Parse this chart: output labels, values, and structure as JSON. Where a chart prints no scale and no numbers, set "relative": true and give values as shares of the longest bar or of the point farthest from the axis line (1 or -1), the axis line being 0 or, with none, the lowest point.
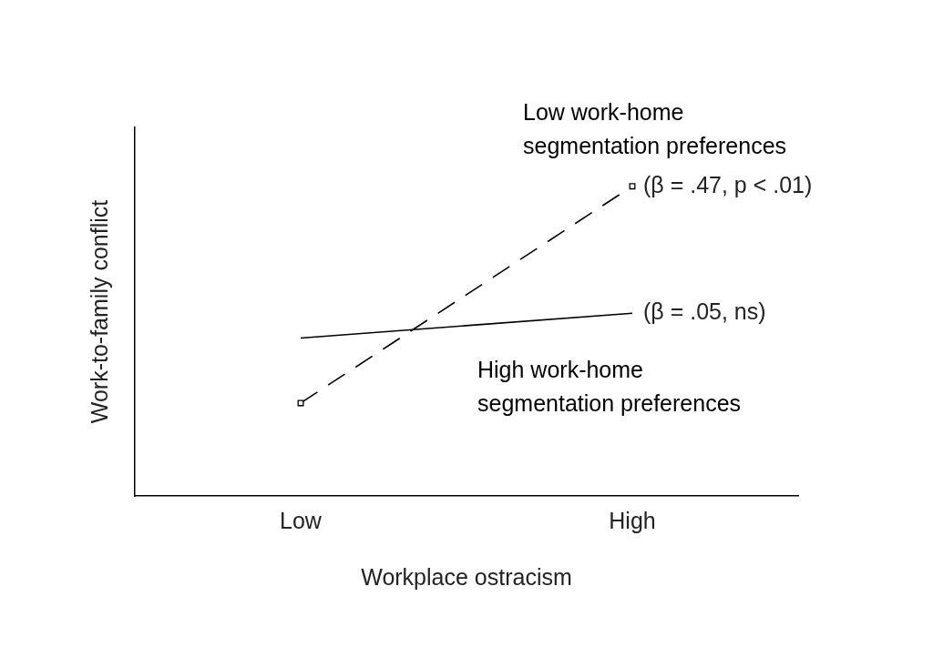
{
  "chart_data": {
    "type": "line",
    "relative": true,
    "xlabel": "Workplace ostracism",
    "ylabel": "Work-to-family conflict",
    "categories": [
      "Low",
      "High"
    ],
    "series": [
      {
        "name": "Low work-home segmentation preferences",
        "color": "#000000",
        "values": [
          0.3,
          1
        ],
        "marker": "square",
        "line_style": "dashed"
      },
      {
        "name": "High work-home segmentation preferences",
        "color": "#000000",
        "values": [
          0.51,
          0.59
        ],
        "marker": "none",
        "line_style": "solid"
      }
    ],
    "annotations": [
      {
        "text": "(β = .47, p < .01)",
        "x": "High",
        "y": 1
      },
      {
        "text": "(β = .05, ns)",
        "x": "High",
        "y": 0.59
      }
    ],
    "grid": false,
    "legend": false
  }
}
